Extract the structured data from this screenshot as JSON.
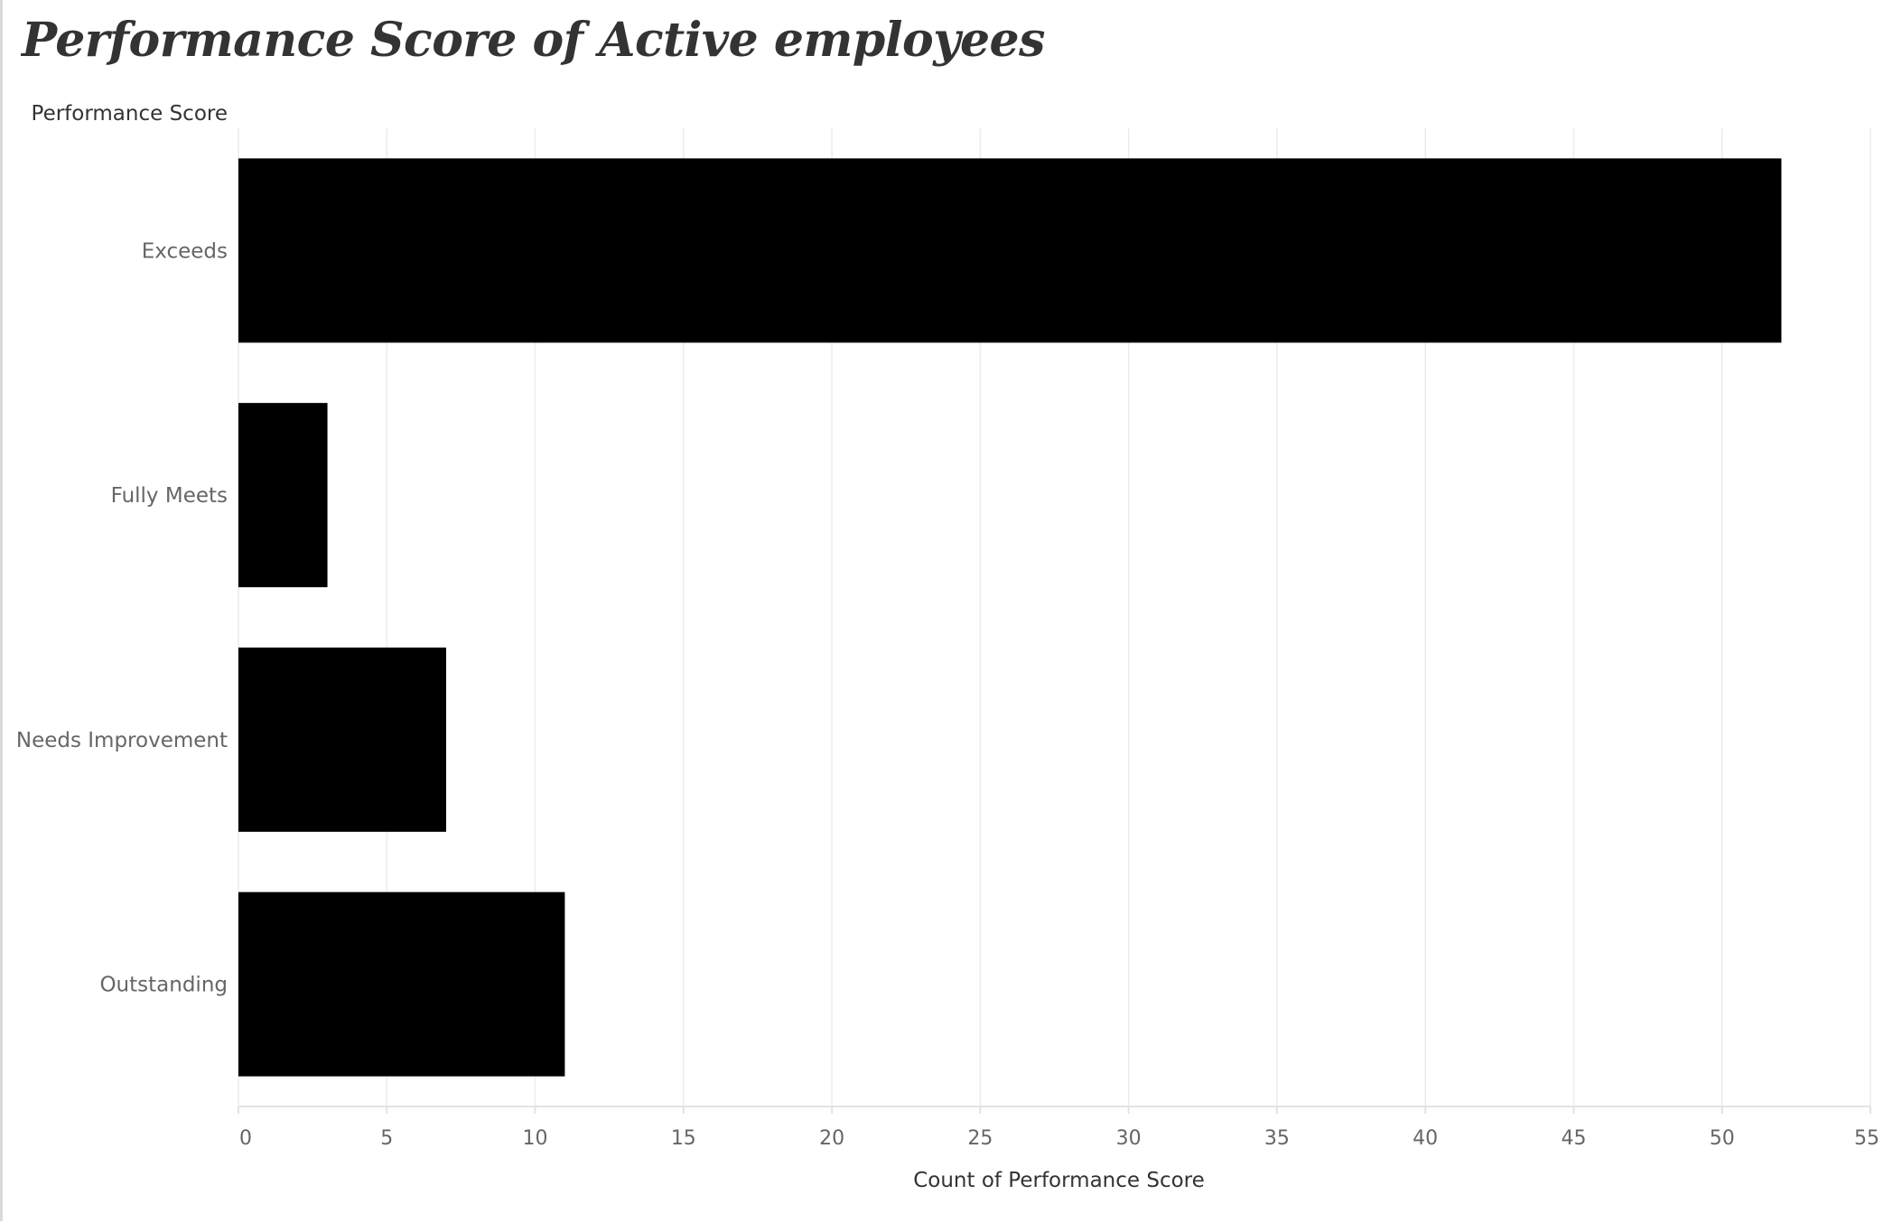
{
  "page": {
    "title": "Performance Score of Active employees"
  },
  "colors": {
    "bar": "#000000",
    "grid": "#ececec",
    "axis_line": "#e3e3e3",
    "category_label": "#666666",
    "axis_title": "#333333",
    "tick_label": "#666666"
  },
  "chart_data": {
    "type": "bar",
    "orientation": "horizontal",
    "categories": [
      "Exceeds",
      "Fully Meets",
      "Needs Improvement",
      "Outstanding"
    ],
    "values": [
      52,
      3,
      7,
      11
    ],
    "xlabel": "Count of Performance Score",
    "ylabel": "Performance Score",
    "xlim": [
      0,
      55
    ],
    "xticks": [
      0,
      5,
      10,
      15,
      20,
      25,
      30,
      35,
      40,
      45,
      50,
      55
    ],
    "grid": "vertical"
  }
}
